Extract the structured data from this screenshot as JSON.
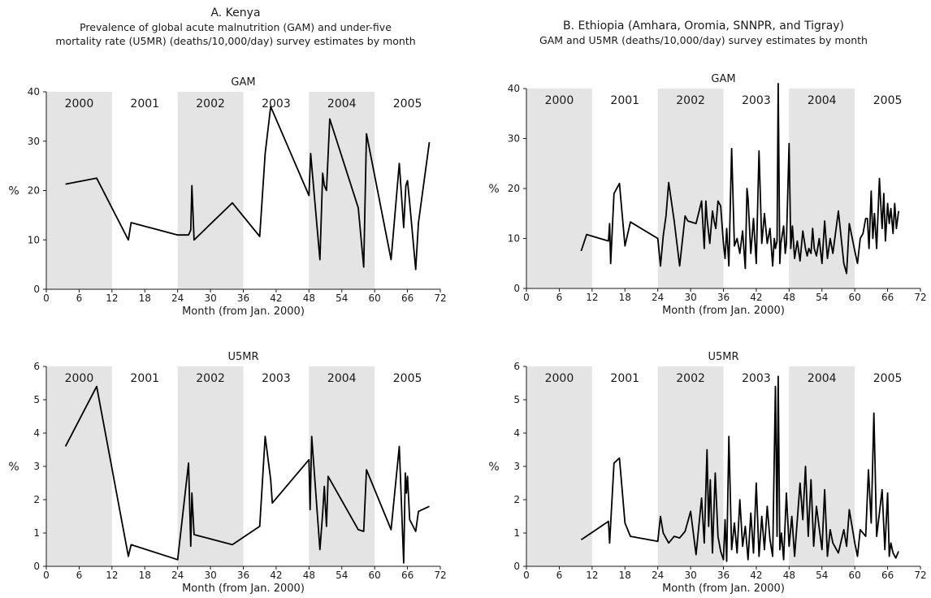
{
  "panels": [
    {
      "title": "A. Kenya",
      "subtitle_lines": [
        "Prevalence of global acute malnutrition (GAM) and under-five",
        "mortality rate (U5MR) (deaths/10,000/day) survey estimates by month"
      ]
    },
    {
      "title": "B. Ethiopia (Amhara, Oromia, SNNPR, and Tigray)",
      "subtitle_lines": [
        "GAM and U5MR (deaths/10,000/day) survey estimates by month"
      ]
    }
  ],
  "colors": {
    "line": "#000000",
    "shade": "#e4e4e4",
    "axis": "#1a1a1a"
  },
  "chart_data": [
    {
      "type": "line",
      "panel": "A. Kenya",
      "title": "GAM",
      "xlabel": "Month (from Jan. 2000)",
      "ylabel": "%",
      "xlim": [
        0,
        72
      ],
      "ylim": [
        0,
        40
      ],
      "xticks": [
        0,
        6,
        12,
        18,
        24,
        30,
        36,
        42,
        48,
        54,
        60,
        66,
        72
      ],
      "yticks": [
        0,
        10,
        20,
        30,
        40
      ],
      "year_bands": [
        {
          "label": "2000",
          "from": 0,
          "to": 12,
          "shaded": true
        },
        {
          "label": "2001",
          "from": 12,
          "to": 24,
          "shaded": false
        },
        {
          "label": "2002",
          "from": 24,
          "to": 36,
          "shaded": true
        },
        {
          "label": "2003",
          "from": 36,
          "to": 48,
          "shaded": false
        },
        {
          "label": "2004",
          "from": 48,
          "to": 60,
          "shaded": true
        },
        {
          "label": "2005",
          "from": 60,
          "to": 72,
          "shaded": false
        }
      ],
      "series": [
        {
          "x": [
            3.5,
            9.2,
            15,
            15.5,
            24,
            26,
            26.4,
            26.6,
            27,
            34,
            39,
            40,
            41,
            48,
            48.3,
            50,
            50.5,
            50.8,
            51.2,
            51.8,
            57,
            58,
            58.5,
            63,
            64.5,
            65.3,
            65.7,
            66,
            66.4,
            67.5,
            68,
            70
          ],
          "y": [
            21.3,
            22.5,
            10,
            13.5,
            11,
            11,
            12,
            21,
            10,
            17.5,
            10.7,
            27.5,
            37,
            19,
            27.5,
            6,
            23.5,
            21,
            20,
            34.5,
            16.5,
            4.5,
            31.5,
            6,
            25.5,
            12.5,
            21,
            22,
            17.5,
            4,
            13.5,
            29.8
          ]
        }
      ]
    },
    {
      "type": "line",
      "panel": "A. Kenya",
      "title": "U5MR",
      "xlabel": "Month (from Jan. 2000)",
      "ylabel": "%",
      "xlim": [
        0,
        72
      ],
      "ylim": [
        0,
        6
      ],
      "xticks": [
        0,
        6,
        12,
        18,
        24,
        30,
        36,
        42,
        48,
        54,
        60,
        66,
        72
      ],
      "yticks": [
        0,
        1,
        2,
        3,
        4,
        5,
        6
      ],
      "year_bands": [
        {
          "label": "2000",
          "from": 0,
          "to": 12,
          "shaded": true
        },
        {
          "label": "2001",
          "from": 12,
          "to": 24,
          "shaded": false
        },
        {
          "label": "2002",
          "from": 24,
          "to": 36,
          "shaded": true
        },
        {
          "label": "2003",
          "from": 36,
          "to": 48,
          "shaded": false
        },
        {
          "label": "2004",
          "from": 48,
          "to": 60,
          "shaded": true
        },
        {
          "label": "2005",
          "from": 60,
          "to": 72,
          "shaded": false
        }
      ],
      "series": [
        {
          "x": [
            3.5,
            9.2,
            15,
            15.5,
            24,
            26,
            26.4,
            26.6,
            27,
            34,
            39,
            40,
            41,
            41.3,
            48,
            48.2,
            48.5,
            50,
            50.5,
            50.8,
            51.2,
            51.5,
            57,
            58,
            58.5,
            63,
            64.5,
            65.3,
            65.6,
            65.8,
            66,
            66.4,
            67.5,
            68,
            70
          ],
          "y": [
            3.6,
            5.4,
            0.3,
            0.65,
            0.2,
            3.1,
            0.6,
            2.2,
            0.95,
            0.65,
            1.2,
            3.9,
            2.6,
            1.9,
            3.2,
            1.7,
            3.9,
            0.5,
            1.6,
            2.4,
            1.2,
            2.7,
            1.1,
            1.05,
            2.9,
            1.1,
            3.6,
            0.1,
            2.8,
            2.2,
            2.7,
            1.4,
            1.05,
            1.65,
            1.8
          ]
        }
      ]
    },
    {
      "type": "line",
      "panel": "B. Ethiopia (Amhara, Oromia, SNNPR, and Tigray)",
      "title": "GAM",
      "xlabel": "Month (from Jan. 2000)",
      "ylabel": "%",
      "xlim": [
        0,
        72
      ],
      "ylim": [
        0,
        40
      ],
      "xticks": [
        0,
        6,
        12,
        18,
        24,
        30,
        36,
        42,
        48,
        54,
        60,
        66,
        72
      ],
      "yticks": [
        0,
        10,
        20,
        30,
        40
      ],
      "year_bands": [
        {
          "label": "2000",
          "from": 0,
          "to": 12,
          "shaded": true
        },
        {
          "label": "2001",
          "from": 12,
          "to": 24,
          "shaded": false
        },
        {
          "label": "2002",
          "from": 24,
          "to": 36,
          "shaded": true
        },
        {
          "label": "2003",
          "from": 36,
          "to": 48,
          "shaded": false
        },
        {
          "label": "2004",
          "from": 48,
          "to": 60,
          "shaded": true
        },
        {
          "label": "2005",
          "from": 60,
          "to": 72,
          "shaded": false
        }
      ],
      "series": [
        {
          "x": [
            10,
            11,
            15,
            15.2,
            15.4,
            16,
            17,
            18,
            19,
            24,
            24.5,
            25,
            25.5,
            26,
            27,
            28,
            29,
            29.5,
            31,
            32,
            32.5,
            32.8,
            33,
            33.5,
            34,
            34.3,
            34.6,
            35,
            35.5,
            36,
            36.3,
            36.6,
            37,
            37.5,
            38,
            38.5,
            39,
            39.5,
            40,
            40.3,
            40.5,
            41,
            41.5,
            42,
            42.5,
            43,
            43.5,
            44,
            44.5,
            45,
            45.3,
            45.5,
            45.8,
            46,
            46.3,
            46.5,
            47,
            47.3,
            47.5,
            48,
            48.3,
            48.6,
            49,
            49.5,
            50,
            50.5,
            51,
            51.3,
            51.6,
            52,
            52.3,
            52.6,
            53,
            53.5,
            54,
            54.5,
            55,
            55.5,
            56,
            57,
            58,
            58.5,
            59,
            60,
            60.5,
            61,
            61.5,
            62,
            62.3,
            62.6,
            63,
            63.3,
            63.6,
            64,
            64.5,
            65,
            65.3,
            65.6,
            66,
            66.3,
            66.6,
            67,
            67.3,
            67.6,
            68
          ],
          "y": [
            7.5,
            10.8,
            9.5,
            13,
            5,
            19,
            21,
            8.5,
            13.3,
            10,
            4.5,
            10.5,
            14.5,
            21.2,
            13.5,
            4.5,
            14.5,
            13.5,
            13,
            17.5,
            8,
            17.5,
            14,
            9,
            15.5,
            13.5,
            12,
            17.5,
            16.5,
            9,
            6,
            12,
            4.5,
            28,
            8.5,
            10,
            7,
            11.5,
            4,
            20,
            18,
            7,
            14,
            5,
            27.5,
            9,
            15,
            9,
            12,
            4.5,
            10,
            8,
            9.5,
            41,
            5,
            9,
            12.5,
            7,
            9,
            29,
            8,
            12.5,
            6,
            9.5,
            5.5,
            11.5,
            8,
            6.5,
            8,
            7,
            12,
            8,
            6.5,
            10,
            5,
            13.5,
            6,
            10,
            7,
            15.5,
            5,
            3,
            13,
            7.5,
            5,
            10,
            11,
            14,
            14,
            8,
            19.5,
            10,
            15,
            8,
            22,
            12,
            19,
            9.5,
            17,
            13,
            16,
            11,
            17,
            12,
            15.5
          ],
          "note": "dense series; values approximate"
        }
      ]
    },
    {
      "type": "line",
      "panel": "B. Ethiopia (Amhara, Oromia, SNNPR, and Tigray)",
      "title": "U5MR",
      "xlabel": "Month (from Jan. 2000)",
      "ylabel": "%",
      "xlim": [
        0,
        72
      ],
      "ylim": [
        0,
        6
      ],
      "xticks": [
        0,
        6,
        12,
        18,
        24,
        30,
        36,
        42,
        48,
        54,
        60,
        66,
        72
      ],
      "yticks": [
        0,
        1,
        2,
        3,
        4,
        5,
        6
      ],
      "year_bands": [
        {
          "label": "2000",
          "from": 0,
          "to": 12,
          "shaded": true
        },
        {
          "label": "2001",
          "from": 12,
          "to": 24,
          "shaded": false
        },
        {
          "label": "2002",
          "from": 24,
          "to": 36,
          "shaded": true
        },
        {
          "label": "2003",
          "from": 36,
          "to": 48,
          "shaded": false
        },
        {
          "label": "2004",
          "from": 48,
          "to": 60,
          "shaded": true
        },
        {
          "label": "2005",
          "from": 60,
          "to": 72,
          "shaded": false
        }
      ],
      "series": [
        {
          "x": [
            10,
            10.5,
            15,
            15.2,
            16,
            17,
            18,
            19,
            24,
            24.5,
            25,
            26,
            27,
            28,
            29,
            30,
            31,
            32,
            32.5,
            33,
            33.3,
            33.6,
            34,
            34.5,
            35,
            35.5,
            36,
            36.3,
            36.6,
            37,
            37.5,
            38,
            38.5,
            39,
            39.5,
            40,
            40.5,
            41,
            41.5,
            42,
            42.5,
            43,
            43.5,
            44,
            44.5,
            45,
            45.5,
            45.8,
            46,
            46.3,
            46.6,
            47,
            47.5,
            48,
            48.5,
            49,
            50,
            50.5,
            51,
            51.5,
            52,
            52.5,
            53,
            54,
            54.5,
            55,
            55.5,
            56,
            57,
            58,
            58.5,
            59,
            60,
            60.5,
            61,
            62,
            62.5,
            63,
            63.5,
            64,
            64.5,
            65,
            65.5,
            66,
            66.3,
            66.6,
            67,
            67.5,
            68
          ],
          "y": [
            0.8,
            0.85,
            1.35,
            0.7,
            3.1,
            3.25,
            1.3,
            0.9,
            0.75,
            1.5,
            1.0,
            0.7,
            0.9,
            0.85,
            1.05,
            1.65,
            0.35,
            2.05,
            0.7,
            3.5,
            1.2,
            2.6,
            0.4,
            2.8,
            0.9,
            0.45,
            0.2,
            1.4,
            0.15,
            3.9,
            0.5,
            1.3,
            0.4,
            2.0,
            0.6,
            1.2,
            0.2,
            1.6,
            0.4,
            2.5,
            0.3,
            1.5,
            0.5,
            1.8,
            0.8,
            0.3,
            5.4,
            0.9,
            5.7,
            0.5,
            1.0,
            0.2,
            2.2,
            0.6,
            1.5,
            0.3,
            2.5,
            1.4,
            3.0,
            0.9,
            2.6,
            0.6,
            1.8,
            0.5,
            2.3,
            0.3,
            1.1,
            0.7,
            0.4,
            1.1,
            0.6,
            1.7,
            0.7,
            0.3,
            1.1,
            0.9,
            2.9,
            1.3,
            4.6,
            0.9,
            1.6,
            2.3,
            0.5,
            2.2,
            0.3,
            0.7,
            0.4,
            0.25,
            0.45
          ],
          "note": "dense series; values approximate"
        }
      ]
    }
  ]
}
